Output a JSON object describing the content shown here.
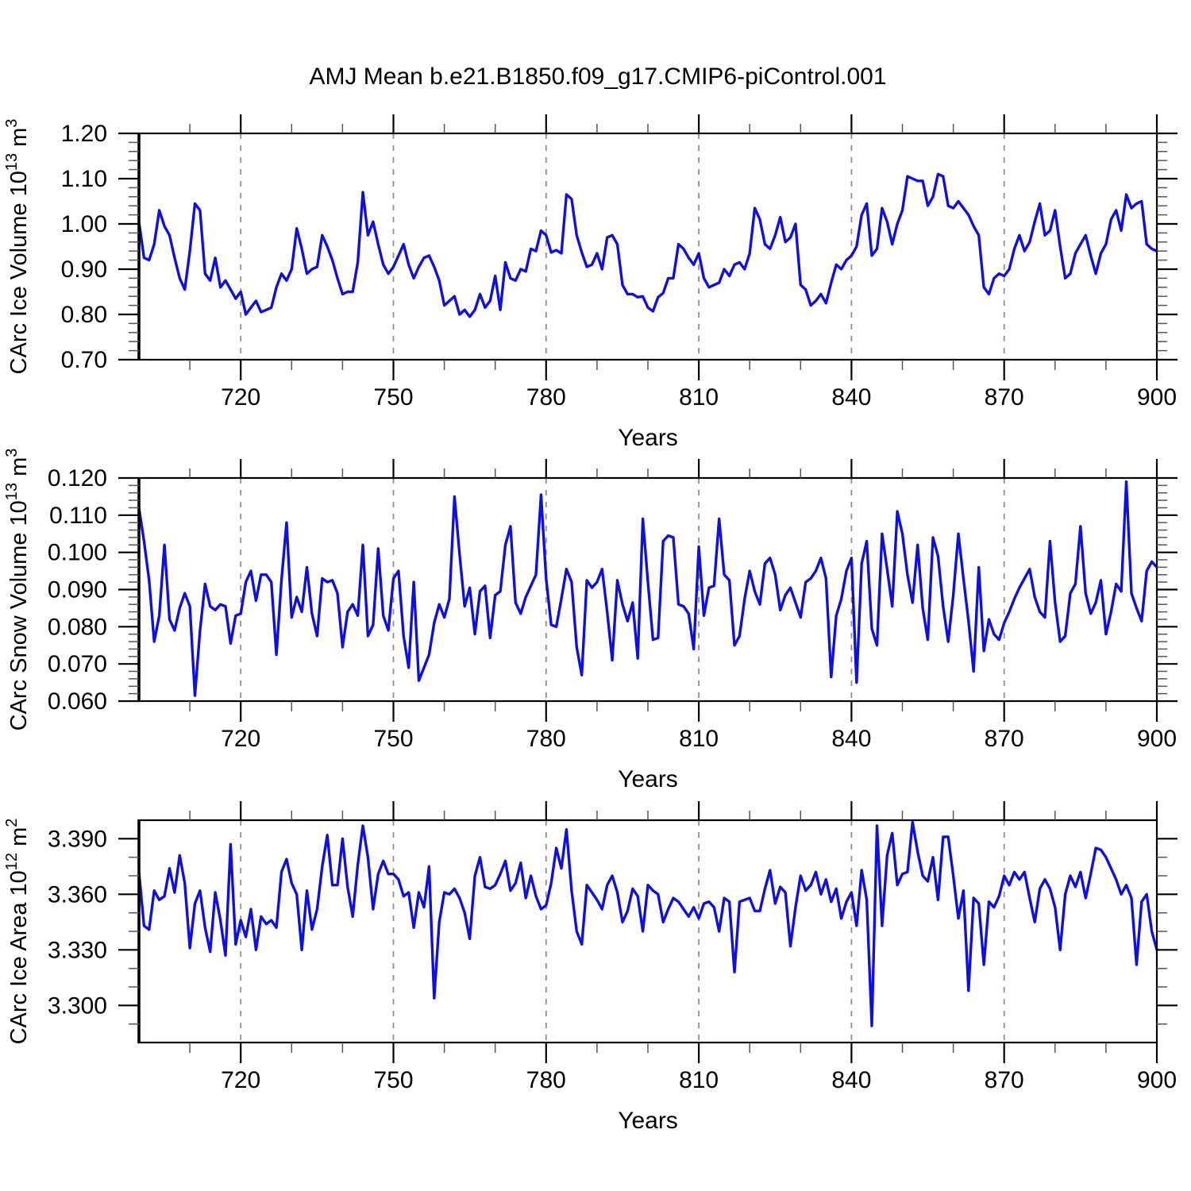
{
  "title": "AMJ Mean b.e21.B1850.f09_g17.CMIP6-piControl.001",
  "xlabel": "Years",
  "colors": {
    "line": "#0f0fe0",
    "grid": "#8f8f8f",
    "axis": "#000000",
    "minor_tick": "#555555"
  },
  "chart_data": [
    {
      "type": "line",
      "name": "carc-ice-volume",
      "ylabel": {
        "prefix": "CArc Ice Volume 10",
        "sup1": "13",
        "mid": " m",
        "sup2": "3"
      },
      "x_start": 700,
      "x_step": 1,
      "xlim": [
        700,
        900
      ],
      "ylim": [
        0.7,
        1.2
      ],
      "xticks": [
        720,
        750,
        780,
        810,
        840,
        870,
        900
      ],
      "xtick_labels": [
        "720",
        "750",
        "780",
        "810",
        "840",
        "870",
        "900"
      ],
      "x_minor_step": 10,
      "yticks": [
        0.7,
        0.8,
        0.9,
        1.0,
        1.1,
        1.2
      ],
      "ytick_labels": [
        "0.70",
        "0.80",
        "0.90",
        "1.00",
        "1.10",
        "1.20"
      ],
      "y_minor_step": 0.02,
      "gridlines_x": [
        720,
        750,
        780,
        810,
        840,
        870
      ],
      "legend": "none",
      "grid": "vertical-dashed",
      "values": [
        1.005,
        0.925,
        0.92,
        0.955,
        1.03,
        0.995,
        0.975,
        0.925,
        0.88,
        0.855,
        0.94,
        1.045,
        1.03,
        0.89,
        0.875,
        0.925,
        0.86,
        0.875,
        0.855,
        0.835,
        0.85,
        0.8,
        0.815,
        0.83,
        0.805,
        0.81,
        0.815,
        0.86,
        0.89,
        0.875,
        0.9,
        0.99,
        0.945,
        0.89,
        0.9,
        0.905,
        0.975,
        0.95,
        0.92,
        0.88,
        0.845,
        0.85,
        0.85,
        0.915,
        1.07,
        0.975,
        1.005,
        0.955,
        0.91,
        0.89,
        0.905,
        0.93,
        0.955,
        0.91,
        0.88,
        0.905,
        0.925,
        0.93,
        0.905,
        0.875,
        0.82,
        0.83,
        0.84,
        0.8,
        0.81,
        0.795,
        0.81,
        0.845,
        0.815,
        0.83,
        0.885,
        0.81,
        0.915,
        0.88,
        0.875,
        0.9,
        0.895,
        0.945,
        0.94,
        0.985,
        0.975,
        0.937,
        0.942,
        0.935,
        1.065,
        1.055,
        0.975,
        0.937,
        0.905,
        0.91,
        0.935,
        0.9,
        0.97,
        0.975,
        0.955,
        0.865,
        0.845,
        0.845,
        0.838,
        0.84,
        0.815,
        0.807,
        0.838,
        0.847,
        0.88,
        0.88,
        0.955,
        0.945,
        0.925,
        0.91,
        0.935,
        0.88,
        0.86,
        0.865,
        0.87,
        0.9,
        0.885,
        0.91,
        0.915,
        0.9,
        0.935,
        1.035,
        1.01,
        0.955,
        0.945,
        0.975,
        1.015,
        0.96,
        0.97,
        1.0,
        0.865,
        0.855,
        0.82,
        0.83,
        0.845,
        0.825,
        0.87,
        0.91,
        0.9,
        0.92,
        0.93,
        0.95,
        1.02,
        1.045,
        0.93,
        0.945,
        1.035,
        1.005,
        0.955,
        1.0,
        1.03,
        1.105,
        1.1,
        1.095,
        1.095,
        1.04,
        1.06,
        1.11,
        1.105,
        1.04,
        1.035,
        1.05,
        1.035,
        1.02,
        0.995,
        0.975,
        0.86,
        0.845,
        0.88,
        0.89,
        0.885,
        0.9,
        0.945,
        0.975,
        0.94,
        0.96,
        1.005,
        1.045,
        0.975,
        0.985,
        1.03,
        0.95,
        0.88,
        0.89,
        0.935,
        0.955,
        0.975,
        0.93,
        0.89,
        0.935,
        0.955,
        1.01,
        1.03,
        0.985,
        1.065,
        1.035,
        1.045,
        1.05,
        0.955,
        0.945,
        0.94
      ]
    },
    {
      "type": "line",
      "name": "carc-snow-volume",
      "ylabel": {
        "prefix": "CArc Snow Volume 10",
        "sup1": "13",
        "mid": " m",
        "sup2": "3"
      },
      "x_start": 700,
      "x_step": 1,
      "xlim": [
        700,
        900
      ],
      "ylim": [
        0.06,
        0.12
      ],
      "xticks": [
        720,
        750,
        780,
        810,
        840,
        870,
        900
      ],
      "xtick_labels": [
        "720",
        "750",
        "780",
        "810",
        "840",
        "870",
        "900"
      ],
      "x_minor_step": 10,
      "yticks": [
        0.06,
        0.07,
        0.08,
        0.09,
        0.1,
        0.11,
        0.12
      ],
      "ytick_labels": [
        "0.060",
        "0.070",
        "0.080",
        "0.090",
        "0.100",
        "0.110",
        "0.120"
      ],
      "y_minor_step": 0.002,
      "gridlines_x": [
        720,
        750,
        780,
        810,
        840,
        870
      ],
      "legend": "none",
      "grid": "vertical-dashed",
      "values": [
        0.112,
        0.103,
        0.0925,
        0.076,
        0.083,
        0.102,
        0.082,
        0.079,
        0.085,
        0.089,
        0.0855,
        0.0615,
        0.079,
        0.0915,
        0.0855,
        0.0845,
        0.086,
        0.0855,
        0.0755,
        0.083,
        0.0835,
        0.092,
        0.095,
        0.087,
        0.094,
        0.094,
        0.092,
        0.0725,
        0.0925,
        0.108,
        0.0825,
        0.088,
        0.084,
        0.096,
        0.0835,
        0.0775,
        0.093,
        0.092,
        0.0925,
        0.089,
        0.0745,
        0.084,
        0.086,
        0.083,
        0.102,
        0.0775,
        0.0805,
        0.101,
        0.083,
        0.079,
        0.093,
        0.095,
        0.0775,
        0.069,
        0.092,
        0.0655,
        0.069,
        0.0725,
        0.081,
        0.086,
        0.0825,
        0.0875,
        0.115,
        0.0995,
        0.0855,
        0.0905,
        0.078,
        0.0895,
        0.091,
        0.077,
        0.0885,
        0.0895,
        0.102,
        0.107,
        0.0865,
        0.0835,
        0.088,
        0.091,
        0.094,
        0.1155,
        0.093,
        0.0805,
        0.08,
        0.0875,
        0.0955,
        0.092,
        0.0745,
        0.067,
        0.0925,
        0.0905,
        0.092,
        0.0955,
        0.084,
        0.071,
        0.0925,
        0.086,
        0.0815,
        0.0865,
        0.0715,
        0.109,
        0.092,
        0.0765,
        0.077,
        0.103,
        0.1045,
        0.104,
        0.086,
        0.0855,
        0.0835,
        0.074,
        0.1015,
        0.083,
        0.0905,
        0.091,
        0.109,
        0.094,
        0.0925,
        0.075,
        0.0775,
        0.0875,
        0.095,
        0.0895,
        0.086,
        0.097,
        0.0985,
        0.094,
        0.0845,
        0.0885,
        0.0905,
        0.0865,
        0.0825,
        0.092,
        0.093,
        0.095,
        0.0985,
        0.093,
        0.0665,
        0.083,
        0.0875,
        0.095,
        0.0985,
        0.065,
        0.097,
        0.103,
        0.0795,
        0.075,
        0.105,
        0.0955,
        0.0855,
        0.111,
        0.105,
        0.094,
        0.0865,
        0.102,
        0.085,
        0.0765,
        0.104,
        0.099,
        0.0855,
        0.076,
        0.0885,
        0.105,
        0.093,
        0.0815,
        0.068,
        0.096,
        0.0735,
        0.082,
        0.078,
        0.0765,
        0.081,
        0.084,
        0.0875,
        0.0905,
        0.093,
        0.0955,
        0.088,
        0.084,
        0.0825,
        0.103,
        0.0865,
        0.076,
        0.0775,
        0.089,
        0.0915,
        0.107,
        0.089,
        0.0835,
        0.0865,
        0.0925,
        0.078,
        0.084,
        0.0915,
        0.0895,
        0.119,
        0.089,
        0.085,
        0.0815,
        0.095,
        0.0975,
        0.096
      ]
    },
    {
      "type": "line",
      "name": "carc-ice-area",
      "ylabel": {
        "prefix": "CArc Ice Area 10",
        "sup1": "12",
        "mid": " m",
        "sup2": "2"
      },
      "x_start": 700,
      "x_step": 1,
      "xlim": [
        700,
        900
      ],
      "ylim": [
        3.28,
        3.4
      ],
      "xticks": [
        720,
        750,
        780,
        810,
        840,
        870,
        900
      ],
      "xtick_labels": [
        "720",
        "750",
        "780",
        "810",
        "840",
        "870",
        "900"
      ],
      "x_minor_step": 10,
      "yticks": [
        3.3,
        3.33,
        3.36,
        3.39
      ],
      "ytick_labels": [
        "3.300",
        "3.330",
        "3.360",
        "3.390"
      ],
      "y_minor_step": 0.01,
      "gridlines_x": [
        720,
        750,
        780,
        810,
        840,
        870
      ],
      "legend": "none",
      "grid": "vertical-dashed",
      "values": [
        3.372,
        3.343,
        3.341,
        3.362,
        3.357,
        3.359,
        3.374,
        3.361,
        3.381,
        3.366,
        3.331,
        3.355,
        3.362,
        3.342,
        3.329,
        3.361,
        3.346,
        3.327,
        3.387,
        3.333,
        3.346,
        3.337,
        3.352,
        3.33,
        3.348,
        3.344,
        3.346,
        3.342,
        3.372,
        3.379,
        3.366,
        3.36,
        3.33,
        3.362,
        3.341,
        3.352,
        3.375,
        3.392,
        3.365,
        3.365,
        3.39,
        3.364,
        3.348,
        3.376,
        3.397,
        3.38,
        3.352,
        3.371,
        3.378,
        3.371,
        3.371,
        3.368,
        3.359,
        3.361,
        3.342,
        3.361,
        3.353,
        3.375,
        3.304,
        3.345,
        3.361,
        3.36,
        3.363,
        3.358,
        3.35,
        3.336,
        3.37,
        3.38,
        3.364,
        3.363,
        3.365,
        3.371,
        3.378,
        3.362,
        3.366,
        3.377,
        3.358,
        3.37,
        3.359,
        3.352,
        3.354,
        3.366,
        3.385,
        3.374,
        3.395,
        3.362,
        3.34,
        3.333,
        3.365,
        3.361,
        3.357,
        3.352,
        3.365,
        3.37,
        3.361,
        3.345,
        3.351,
        3.363,
        3.359,
        3.34,
        3.365,
        3.362,
        3.36,
        3.345,
        3.352,
        3.358,
        3.356,
        3.352,
        3.348,
        3.353,
        3.347,
        3.355,
        3.356,
        3.353,
        3.34,
        3.358,
        3.356,
        3.318,
        3.356,
        3.357,
        3.358,
        3.351,
        3.351,
        3.363,
        3.373,
        3.355,
        3.364,
        3.361,
        3.332,
        3.353,
        3.37,
        3.362,
        3.365,
        3.372,
        3.36,
        3.368,
        3.356,
        3.363,
        3.347,
        3.356,
        3.361,
        3.343,
        3.373,
        3.357,
        3.289,
        3.397,
        3.343,
        3.381,
        3.393,
        3.365,
        3.371,
        3.372,
        3.399,
        3.383,
        3.37,
        3.367,
        3.38,
        3.357,
        3.391,
        3.391,
        3.37,
        3.347,
        3.362,
        3.308,
        3.358,
        3.355,
        3.322,
        3.356,
        3.353,
        3.359,
        3.37,
        3.365,
        3.372,
        3.368,
        3.372,
        3.358,
        3.345,
        3.363,
        3.368,
        3.363,
        3.353,
        3.33,
        3.36,
        3.37,
        3.364,
        3.372,
        3.358,
        3.371,
        3.385,
        3.384,
        3.38,
        3.374,
        3.368,
        3.36,
        3.365,
        3.358,
        3.322,
        3.356,
        3.36,
        3.34,
        3.33
      ]
    }
  ]
}
